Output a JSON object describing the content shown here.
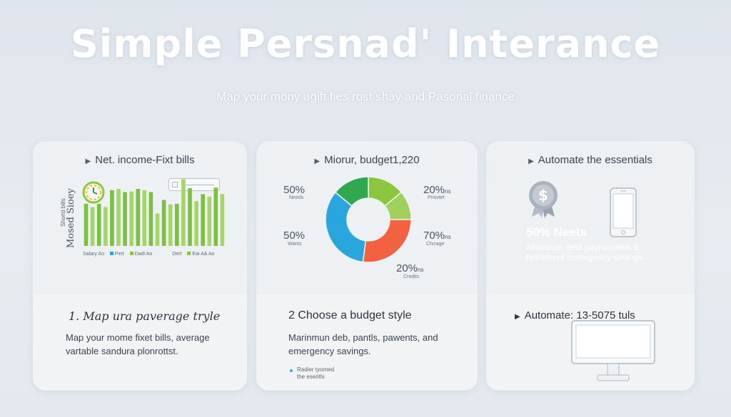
{
  "header": {
    "title": "Simple Persnad' Interance",
    "subtitle": "Map your mony agift fies rost shay and Pasonal finance"
  },
  "cards": [
    {
      "head": "Net. income-Fixt bills",
      "chart_side_label_small": "Shortd bills",
      "chart_side_label_big": "Mosed Sioey",
      "legend": [
        "Salary Ao",
        "Pert",
        "Dadi Ao",
        "Dert",
        "Eai",
        "A&",
        "Ao"
      ],
      "step_title": "1. Map ura paverage tryle",
      "step_desc_1": "Map your mome fixet bills, average",
      "step_desc_2": "vartable sandura plonrottst."
    },
    {
      "head": "Miorur, budget1,220",
      "labels": [
        {
          "pct": "50%",
          "sub": "Needs"
        },
        {
          "pct": "50%",
          "sub": "Wants"
        },
        {
          "pct": "20%",
          "suffix": "ns",
          "sub": "Priovtet"
        },
        {
          "pct": "70%",
          "suffix": "ns",
          "sub": "Chrrage"
        },
        {
          "pct": "20%",
          "suffix": "ns",
          "sub": "Credits"
        }
      ],
      "step_title": "2 Choose a budget style",
      "step_desc_1": "Marinmun deb, pantls, pawents, and",
      "step_desc_2": "emergency savings.",
      "note_1": "Radier tyomed",
      "note_2": "the eseritls"
    },
    {
      "head": "Automate the essentials",
      "ghost_big": "50% Neets",
      "ghost_line_1": "Alinimium debt paynaments &",
      "ghost_line_2": "retirement comegency savings",
      "step_title": "Automate: 13-5075 tuls"
    }
  ],
  "chart_data": [
    {
      "type": "bar",
      "values": [
        6.5,
        6.0,
        6.5,
        6.0,
        8.6,
        8.8,
        8.3,
        8.4,
        8.8,
        8.6,
        8.3,
        5.0,
        7.1,
        6.4,
        6.5,
        10.3,
        8.9,
        6.9,
        8.0,
        7.6,
        9.0,
        8.0
      ],
      "value_max": 11,
      "colors": [
        "#7bc043",
        "#a6d468"
      ]
    },
    {
      "type": "pie",
      "donut": true,
      "slices": [
        {
          "value": 14,
          "color": "#8cc63f"
        },
        {
          "value": 11,
          "color": "#9fd05a"
        },
        {
          "value": 27,
          "color": "#f26140"
        },
        {
          "value": 34,
          "color": "#29a6dd"
        },
        {
          "value": 14,
          "color": "#2fa84f"
        }
      ],
      "start_angle": -90
    }
  ]
}
